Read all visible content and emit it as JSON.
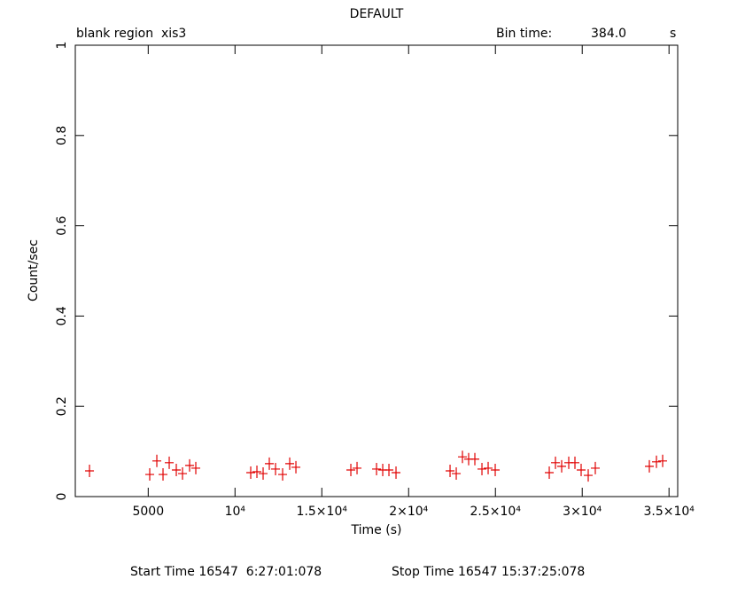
{
  "chart_data": {
    "type": "scatter",
    "title": "DEFAULT",
    "subtitle_left": "blank region  xis3",
    "bin_time_label": "Bin time:",
    "bin_time_value": "384.0",
    "bin_time_unit": "s",
    "xlabel": "Time (s)",
    "ylabel": "Count/sec",
    "footer_start": "Start Time 16547  6:27:01:078",
    "footer_stop": "Stop Time 16547 15:37:25:078",
    "xlim": [
      800,
      35500
    ],
    "ylim": [
      0,
      1
    ],
    "xticks": [
      5000,
      {
        "value": 10000,
        "label": "10⁴"
      },
      {
        "value": 15000,
        "label": "1.5×10⁴"
      },
      {
        "value": 20000,
        "label": "2×10⁴"
      },
      {
        "value": 25000,
        "label": "2.5×10⁴"
      },
      {
        "value": 30000,
        "label": "3×10⁴"
      },
      {
        "value": 35000,
        "label": "3.5×10⁴"
      }
    ],
    "yticks": [
      0,
      0.2,
      0.4,
      0.6,
      0.8,
      1
    ],
    "series": [
      {
        "color": "#e00000",
        "x": [
          1618,
          5087,
          5496,
          5853,
          6210,
          6618,
          6976,
          7384,
          7741,
          10905,
          11262,
          11619,
          11976,
          12334,
          12742,
          13150,
          13508,
          16672,
          17029,
          18152,
          18509,
          18866,
          19274,
          22387,
          22744,
          23101,
          23458,
          23815,
          24224,
          24581,
          24989,
          28102,
          28459,
          28816,
          29224,
          29581,
          29938,
          30346,
          30754,
          33867,
          34276,
          34633
        ],
        "values": [
          0.057,
          0.049,
          0.079,
          0.049,
          0.075,
          0.059,
          0.051,
          0.069,
          0.063,
          0.053,
          0.055,
          0.051,
          0.073,
          0.061,
          0.049,
          0.073,
          0.065,
          0.059,
          0.063,
          0.061,
          0.059,
          0.059,
          0.053,
          0.057,
          0.051,
          0.088,
          0.083,
          0.083,
          0.061,
          0.063,
          0.059,
          0.053,
          0.075,
          0.067,
          0.075,
          0.075,
          0.059,
          0.047,
          0.063,
          0.067,
          0.077,
          0.079
        ]
      }
    ]
  }
}
